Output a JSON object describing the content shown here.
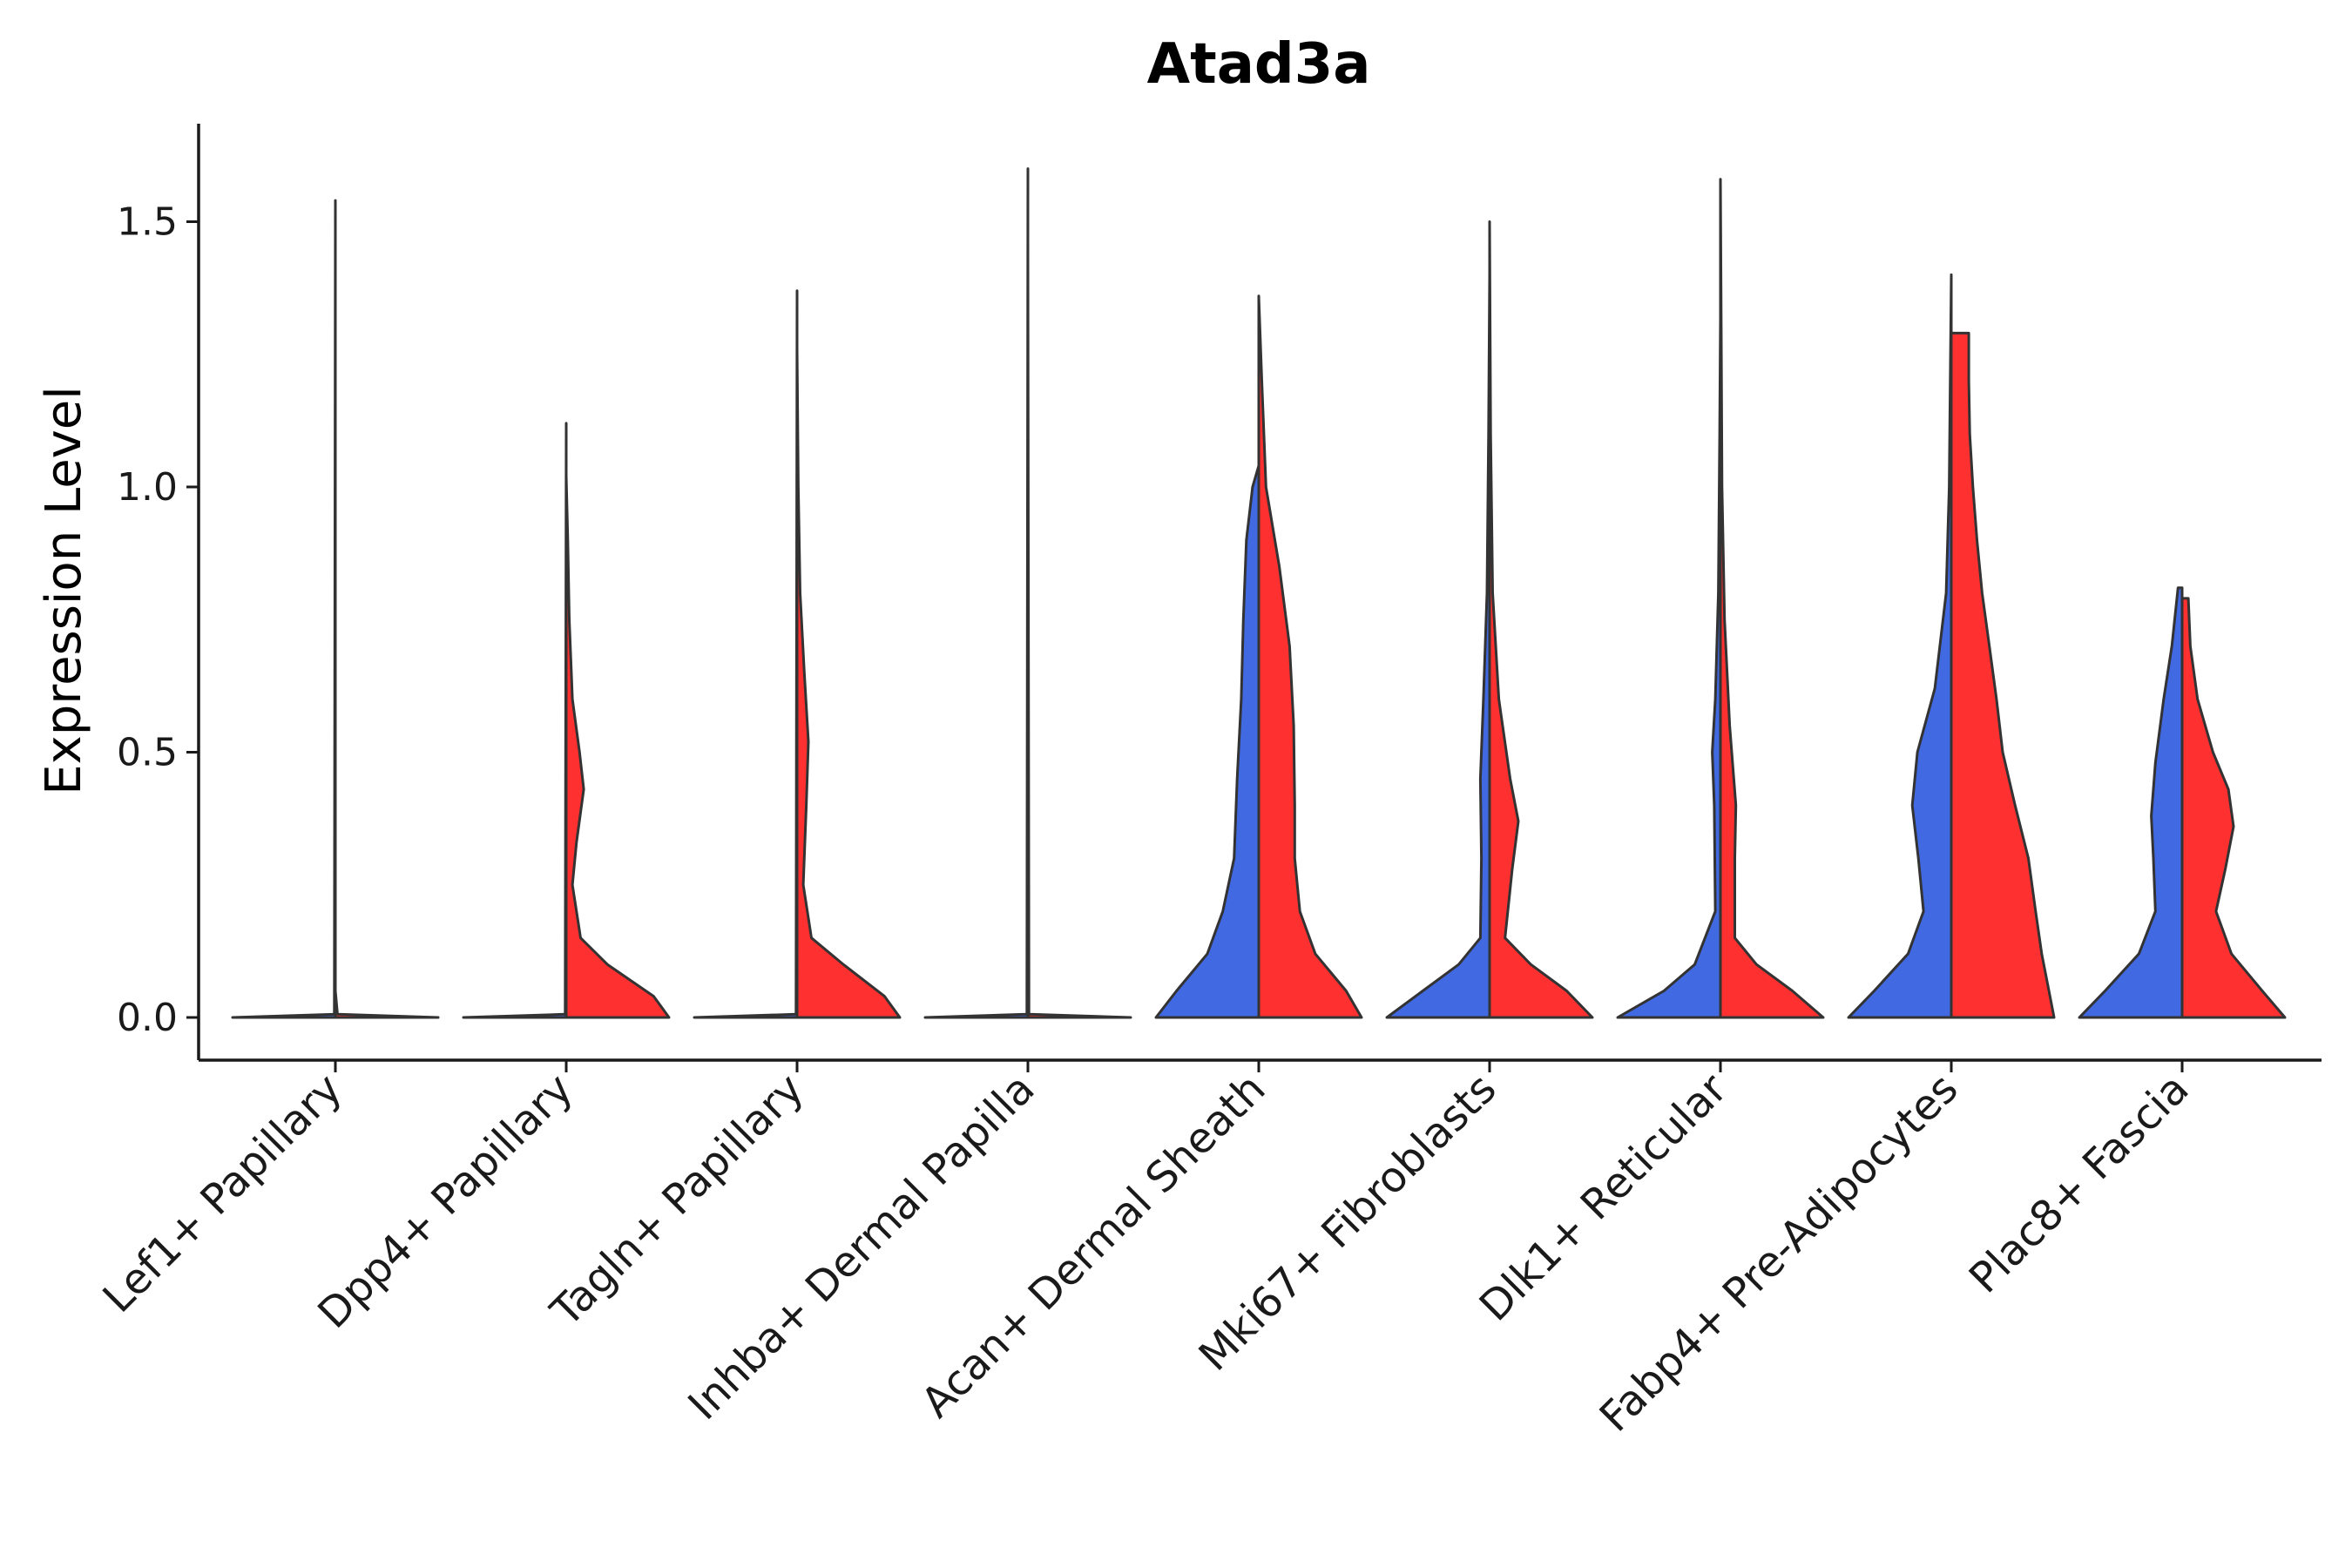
{
  "colors": {
    "blue": "#4169E1",
    "red": "#FF3030",
    "outline": "#333333",
    "axis": "#1a1a1a"
  },
  "chart_data": {
    "type": "violin",
    "title": "Atad3a",
    "xlabel": "",
    "ylabel": "Expression Level",
    "ylim": [
      -0.08,
      1.68
    ],
    "yticks": [
      0.0,
      0.5,
      1.0,
      1.5
    ],
    "ytick_labels": [
      "0.0",
      "0.5",
      "1.0",
      "1.5"
    ],
    "grid": false,
    "categories": [
      "Lef1+ Papillary",
      "Dpp4+ Papillary",
      "Tagln+ Papillary",
      "Inhba+ Dermal Papilla",
      "Acan+ Dermal Sheath",
      "Mki67+ Fibroblasts",
      "Dlk1+ Reticular",
      "Fabp4+ Pre-Adipocytes",
      "Plac8+ Fascia"
    ],
    "violins": [
      {
        "group": 0,
        "side": "left",
        "color": "blue",
        "max": 1.54,
        "density": [
          [
            0,
            1.0
          ],
          [
            0.006,
            0.01
          ],
          [
            1.54,
            0.0
          ]
        ]
      },
      {
        "group": 0,
        "side": "right",
        "color": "red",
        "max": 0.0,
        "density": [
          [
            0,
            1.0
          ],
          [
            0.006,
            0.02
          ],
          [
            0.05,
            0.0
          ]
        ]
      },
      {
        "group": 1,
        "side": "left",
        "color": "blue",
        "max": 1.12,
        "density": [
          [
            0,
            1.0
          ],
          [
            0.006,
            0.01
          ],
          [
            1.12,
            0.0
          ]
        ]
      },
      {
        "group": 1,
        "side": "right",
        "color": "red",
        "max": 1.02,
        "density": [
          [
            0,
            1.0
          ],
          [
            0.04,
            0.85
          ],
          [
            0.1,
            0.4
          ],
          [
            0.15,
            0.14
          ],
          [
            0.25,
            0.06
          ],
          [
            0.33,
            0.1
          ],
          [
            0.43,
            0.17
          ],
          [
            0.5,
            0.13
          ],
          [
            0.6,
            0.06
          ],
          [
            0.75,
            0.03
          ],
          [
            0.9,
            0.015
          ],
          [
            1.02,
            0.0
          ]
        ]
      },
      {
        "group": 2,
        "side": "left",
        "color": "blue",
        "max": 1.37,
        "density": [
          [
            0,
            1.0
          ],
          [
            0.006,
            0.01
          ],
          [
            1.37,
            0.0
          ]
        ]
      },
      {
        "group": 2,
        "side": "right",
        "color": "red",
        "max": 1.26,
        "density": [
          [
            0,
            1.0
          ],
          [
            0.04,
            0.85
          ],
          [
            0.1,
            0.45
          ],
          [
            0.15,
            0.14
          ],
          [
            0.25,
            0.06
          ],
          [
            0.4,
            0.09
          ],
          [
            0.52,
            0.11
          ],
          [
            0.65,
            0.07
          ],
          [
            0.8,
            0.03
          ],
          [
            1.0,
            0.012
          ],
          [
            1.26,
            0.0
          ]
        ]
      },
      {
        "group": 3,
        "side": "left",
        "color": "blue",
        "max": 1.6,
        "density": [
          [
            0,
            1.0
          ],
          [
            0.006,
            0.01
          ],
          [
            1.6,
            0.0
          ]
        ]
      },
      {
        "group": 3,
        "side": "right",
        "color": "red",
        "max": 1.45,
        "density": [
          [
            0,
            1.0
          ],
          [
            0.006,
            0.01
          ],
          [
            1.45,
            0.0
          ]
        ]
      },
      {
        "group": 4,
        "side": "left",
        "color": "blue",
        "max": 1.04,
        "density": [
          [
            0,
            1.0
          ],
          [
            0.05,
            0.8
          ],
          [
            0.12,
            0.5
          ],
          [
            0.2,
            0.35
          ],
          [
            0.3,
            0.24
          ],
          [
            0.45,
            0.21
          ],
          [
            0.6,
            0.17
          ],
          [
            0.75,
            0.15
          ],
          [
            0.9,
            0.12
          ],
          [
            1.0,
            0.06
          ],
          [
            1.04,
            0.0
          ]
        ]
      },
      {
        "group": 4,
        "side": "right",
        "color": "red",
        "max": 1.36,
        "density": [
          [
            0,
            1.0
          ],
          [
            0.05,
            0.85
          ],
          [
            0.12,
            0.55
          ],
          [
            0.2,
            0.4
          ],
          [
            0.3,
            0.35
          ],
          [
            0.4,
            0.35
          ],
          [
            0.55,
            0.34
          ],
          [
            0.7,
            0.3
          ],
          [
            0.85,
            0.2
          ],
          [
            1.0,
            0.07
          ],
          [
            1.2,
            0.03
          ],
          [
            1.36,
            0.0
          ]
        ]
      },
      {
        "group": 5,
        "side": "left",
        "color": "blue",
        "max": 1.4,
        "density": [
          [
            0,
            1.0
          ],
          [
            0.05,
            0.65
          ],
          [
            0.1,
            0.3
          ],
          [
            0.15,
            0.09
          ],
          [
            0.3,
            0.08
          ],
          [
            0.45,
            0.09
          ],
          [
            0.6,
            0.06
          ],
          [
            0.8,
            0.025
          ],
          [
            1.1,
            0.01
          ],
          [
            1.4,
            0.0
          ]
        ]
      },
      {
        "group": 5,
        "side": "right",
        "color": "red",
        "max": 1.5,
        "density": [
          [
            0,
            1.0
          ],
          [
            0.05,
            0.75
          ],
          [
            0.1,
            0.4
          ],
          [
            0.15,
            0.15
          ],
          [
            0.28,
            0.22
          ],
          [
            0.37,
            0.28
          ],
          [
            0.45,
            0.2
          ],
          [
            0.6,
            0.09
          ],
          [
            0.8,
            0.03
          ],
          [
            1.1,
            0.01
          ],
          [
            1.5,
            0.0
          ]
        ]
      },
      {
        "group": 6,
        "side": "left",
        "color": "blue",
        "max": 1.32,
        "density": [
          [
            0,
            1.0
          ],
          [
            0.05,
            0.55
          ],
          [
            0.1,
            0.25
          ],
          [
            0.2,
            0.05
          ],
          [
            0.4,
            0.06
          ],
          [
            0.5,
            0.08
          ],
          [
            0.6,
            0.05
          ],
          [
            0.8,
            0.02
          ],
          [
            1.1,
            0.008
          ],
          [
            1.32,
            0.0
          ]
        ]
      },
      {
        "group": 6,
        "side": "right",
        "color": "red",
        "max": 1.58,
        "density": [
          [
            0,
            1.0
          ],
          [
            0.05,
            0.7
          ],
          [
            0.1,
            0.35
          ],
          [
            0.15,
            0.14
          ],
          [
            0.3,
            0.14
          ],
          [
            0.4,
            0.15
          ],
          [
            0.55,
            0.09
          ],
          [
            0.75,
            0.04
          ],
          [
            1.0,
            0.015
          ],
          [
            1.3,
            0.008
          ],
          [
            1.58,
            0.0
          ]
        ]
      },
      {
        "group": 7,
        "side": "left",
        "color": "blue",
        "max": 1.4,
        "density": [
          [
            0,
            1.0
          ],
          [
            0.05,
            0.75
          ],
          [
            0.12,
            0.42
          ],
          [
            0.2,
            0.27
          ],
          [
            0.3,
            0.32
          ],
          [
            0.4,
            0.38
          ],
          [
            0.5,
            0.33
          ],
          [
            0.62,
            0.16
          ],
          [
            0.8,
            0.05
          ],
          [
            1.0,
            0.02
          ],
          [
            1.4,
            0.0
          ]
        ]
      },
      {
        "group": 7,
        "side": "right",
        "color": "red",
        "max": 1.29,
        "density": [
          [
            0,
            1.0
          ],
          [
            0.05,
            0.95
          ],
          [
            0.12,
            0.88
          ],
          [
            0.2,
            0.82
          ],
          [
            0.3,
            0.75
          ],
          [
            0.4,
            0.62
          ],
          [
            0.5,
            0.5
          ],
          [
            0.6,
            0.44
          ],
          [
            0.7,
            0.37
          ],
          [
            0.8,
            0.3
          ],
          [
            0.9,
            0.25
          ],
          [
            1.0,
            0.21
          ],
          [
            1.1,
            0.18
          ],
          [
            1.2,
            0.17
          ],
          [
            1.29,
            0.17
          ]
        ]
      },
      {
        "group": 8,
        "side": "left",
        "color": "blue",
        "max": 0.81,
        "density": [
          [
            0,
            1.0
          ],
          [
            0.05,
            0.75
          ],
          [
            0.12,
            0.42
          ],
          [
            0.2,
            0.26
          ],
          [
            0.3,
            0.28
          ],
          [
            0.38,
            0.3
          ],
          [
            0.48,
            0.26
          ],
          [
            0.6,
            0.18
          ],
          [
            0.7,
            0.1
          ],
          [
            0.81,
            0.04
          ]
        ]
      },
      {
        "group": 8,
        "side": "right",
        "color": "red",
        "max": 0.79,
        "density": [
          [
            0,
            1.0
          ],
          [
            0.05,
            0.78
          ],
          [
            0.12,
            0.48
          ],
          [
            0.2,
            0.33
          ],
          [
            0.28,
            0.42
          ],
          [
            0.36,
            0.5
          ],
          [
            0.43,
            0.45
          ],
          [
            0.5,
            0.3
          ],
          [
            0.6,
            0.15
          ],
          [
            0.7,
            0.08
          ],
          [
            0.79,
            0.06
          ]
        ]
      }
    ]
  }
}
